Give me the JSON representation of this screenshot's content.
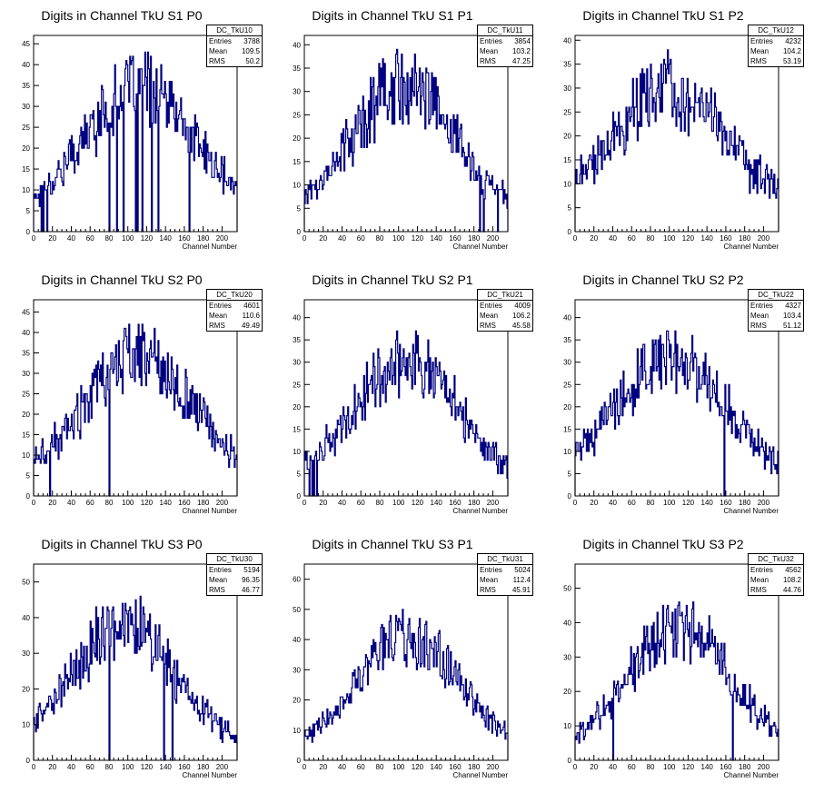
{
  "colors": {
    "histogram": "#000080",
    "axis": "#000000",
    "background": "#ffffff"
  },
  "chart_data": [
    {
      "type": "histogram",
      "title": "Digits in Channel TkU S1 P0",
      "stats": {
        "name": "DC_TkU10",
        "entries": "3788",
        "mean": "109.5",
        "rms": "50.2",
        "labels": [
          "Entries",
          "Mean",
          "RMS"
        ]
      },
      "xlabel": "Channel Number",
      "xlim": [
        0,
        216
      ],
      "ylim": [
        0,
        47
      ],
      "xticks": [
        0,
        20,
        40,
        60,
        80,
        100,
        120,
        140,
        160,
        180,
        200
      ],
      "yticks": [
        0,
        5,
        10,
        15,
        20,
        25,
        30,
        35,
        40,
        45
      ],
      "mean_x": 109.5,
      "rms_x": 50.2,
      "total_entries": 3788,
      "center_x": 112,
      "max_height": 42,
      "zero_bins": [
        8,
        10,
        14,
        80,
        88,
        95,
        108,
        110,
        115,
        125,
        132,
        165
      ]
    },
    {
      "type": "histogram",
      "title": "Digits in Channel TkU S1 P1",
      "stats": {
        "name": "DC_TkU11",
        "entries": "3854",
        "mean": "103.2",
        "rms": "47.25",
        "labels": [
          "Entries",
          "Mean",
          "RMS"
        ]
      },
      "xlabel": "Channel Number",
      "xlim": [
        0,
        216
      ],
      "ylim": [
        0,
        42
      ],
      "xticks": [
        0,
        20,
        40,
        60,
        80,
        100,
        120,
        140,
        160,
        180,
        200
      ],
      "yticks": [
        0,
        5,
        10,
        15,
        20,
        25,
        30,
        35,
        40
      ],
      "mean_x": 103.2,
      "rms_x": 47.25,
      "total_entries": 3854,
      "center_x": 105,
      "max_height": 38,
      "zero_bins": [
        186,
        190,
        205
      ]
    },
    {
      "type": "histogram",
      "title": "Digits in Channel TkU S1 P2",
      "stats": {
        "name": "DC_TkU12",
        "entries": "4232",
        "mean": "104.2",
        "rms": "53.19",
        "labels": [
          "Entries",
          "Mean",
          "RMS"
        ]
      },
      "xlabel": "Channel Number",
      "xlim": [
        0,
        216
      ],
      "ylim": [
        0,
        41
      ],
      "xticks": [
        0,
        20,
        40,
        60,
        80,
        100,
        120,
        140,
        160,
        180,
        200
      ],
      "yticks": [
        0,
        5,
        10,
        15,
        20,
        25,
        30,
        35,
        40
      ],
      "mean_x": 104.2,
      "rms_x": 53.19,
      "total_entries": 4232,
      "center_x": 100,
      "max_height": 36,
      "zero_bins": []
    },
    {
      "type": "histogram",
      "title": "Digits in Channel TkU S2 P0",
      "stats": {
        "name": "DC_TkU20",
        "entries": "4601",
        "mean": "110.6",
        "rms": "49.49",
        "labels": [
          "Entries",
          "Mean",
          "RMS"
        ]
      },
      "xlabel": "Channel Number",
      "xlim": [
        0,
        216
      ],
      "ylim": [
        0,
        48
      ],
      "xticks": [
        0,
        20,
        40,
        60,
        80,
        100,
        120,
        140,
        160,
        180,
        200
      ],
      "yticks": [
        0,
        5,
        10,
        15,
        20,
        25,
        30,
        35,
        40,
        45
      ],
      "mean_x": 110.6,
      "rms_x": 49.49,
      "total_entries": 4601,
      "center_x": 112,
      "max_height": 42,
      "zero_bins": [
        17,
        80
      ]
    },
    {
      "type": "histogram",
      "title": "Digits in Channel TkU S2 P1",
      "stats": {
        "name": "DC_TkU21",
        "entries": "4009",
        "mean": "106.2",
        "rms": "45.58",
        "labels": [
          "Entries",
          "Mean",
          "RMS"
        ]
      },
      "xlabel": "Channel Number",
      "xlim": [
        0,
        216
      ],
      "ylim": [
        0,
        44
      ],
      "xticks": [
        0,
        20,
        40,
        60,
        80,
        100,
        120,
        140,
        160,
        180,
        200
      ],
      "yticks": [
        0,
        5,
        10,
        15,
        20,
        25,
        30,
        35,
        40
      ],
      "mean_x": 106.2,
      "rms_x": 45.58,
      "total_entries": 4009,
      "center_x": 108,
      "max_height": 38,
      "zero_bins": [
        5,
        8,
        10,
        13
      ]
    },
    {
      "type": "histogram",
      "title": "Digits in Channel TkU S2 P2",
      "stats": {
        "name": "DC_TkU22",
        "entries": "4327",
        "mean": "103.4",
        "rms": "51.12",
        "labels": [
          "Entries",
          "Mean",
          "RMS"
        ]
      },
      "xlabel": "Channel Number",
      "xlim": [
        0,
        216
      ],
      "ylim": [
        0,
        44
      ],
      "xticks": [
        0,
        20,
        40,
        60,
        80,
        100,
        120,
        140,
        160,
        180,
        200
      ],
      "yticks": [
        0,
        5,
        10,
        15,
        20,
        25,
        30,
        35,
        40
      ],
      "mean_x": 103.4,
      "rms_x": 51.12,
      "total_entries": 4327,
      "center_x": 102,
      "max_height": 37,
      "zero_bins": [
        158
      ]
    },
    {
      "type": "histogram",
      "title": "Digits in Channel TkU S3 P0",
      "stats": {
        "name": "DC_TkU30",
        "entries": "5194",
        "mean": "96.35",
        "rms": "46.77",
        "labels": [
          "Entries",
          "Mean",
          "RMS"
        ]
      },
      "xlabel": "Channel Number",
      "xlim": [
        0,
        216
      ],
      "ylim": [
        0,
        55
      ],
      "xticks": [
        0,
        20,
        40,
        60,
        80,
        100,
        120,
        140,
        160,
        180,
        200
      ],
      "yticks": [
        0,
        10,
        20,
        30,
        40,
        50
      ],
      "mean_x": 96.35,
      "rms_x": 46.77,
      "total_entries": 5194,
      "center_x": 95,
      "max_height": 46,
      "zero_bins": [
        80,
        138,
        147
      ]
    },
    {
      "type": "histogram",
      "title": "Digits in Channel TkU S3 P1",
      "stats": {
        "name": "DC_TkU31",
        "entries": "5024",
        "mean": "112.4",
        "rms": "45.91",
        "labels": [
          "Entries",
          "Mean",
          "RMS"
        ]
      },
      "xlabel": "Channel Number",
      "xlim": [
        0,
        216
      ],
      "ylim": [
        0,
        65
      ],
      "xticks": [
        0,
        20,
        40,
        60,
        80,
        100,
        120,
        140,
        160,
        180,
        200
      ],
      "yticks": [
        0,
        10,
        20,
        30,
        40,
        50,
        60
      ],
      "mean_x": 112.4,
      "rms_x": 45.91,
      "total_entries": 5024,
      "center_x": 112,
      "max_height": 50,
      "zero_bins": []
    },
    {
      "type": "histogram",
      "title": "Digits in Channel TkU S3 P2",
      "stats": {
        "name": "DC_TkU32",
        "entries": "4562",
        "mean": "108.2",
        "rms": "44.76",
        "labels": [
          "Entries",
          "Mean",
          "RMS"
        ]
      },
      "xlabel": "Channel Number",
      "xlim": [
        0,
        216
      ],
      "ylim": [
        0,
        57
      ],
      "xticks": [
        0,
        20,
        40,
        60,
        80,
        100,
        120,
        140,
        160,
        180,
        200
      ],
      "yticks": [
        0,
        10,
        20,
        30,
        40,
        50
      ],
      "mean_x": 108.2,
      "rms_x": 44.76,
      "total_entries": 4562,
      "center_x": 110,
      "max_height": 48,
      "zero_bins": [
        40,
        167
      ]
    }
  ]
}
